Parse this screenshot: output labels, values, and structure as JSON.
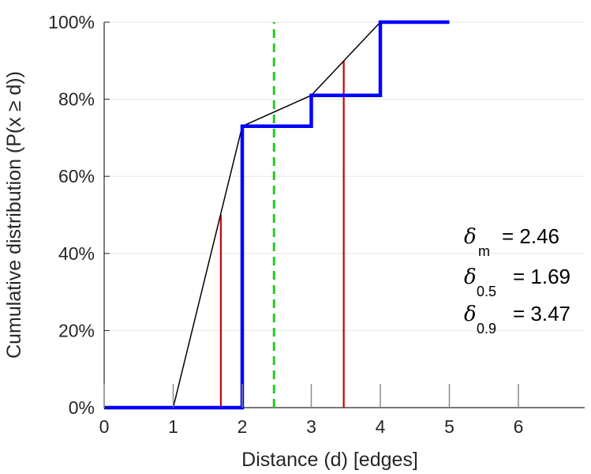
{
  "chart_data": {
    "type": "line",
    "xlabel": "Distance (d) [edges]",
    "ylabel": "Cumulative distribution (P(x ≥ d))",
    "xlim": [
      0,
      7
    ],
    "ylim": [
      0,
      100
    ],
    "x_ticks": [
      "0",
      "1",
      "2",
      "3",
      "4",
      "5",
      "6"
    ],
    "y_ticks": [
      "0%",
      "20%",
      "40%",
      "60%",
      "80%",
      "100%"
    ],
    "grid": true,
    "series": [
      {
        "kind": "step",
        "color": "#0000ff",
        "x": [
          0,
          2,
          2,
          3,
          3,
          4,
          4,
          5
        ],
        "y": [
          0,
          0,
          73,
          73,
          81,
          81,
          100,
          100
        ]
      },
      {
        "kind": "line",
        "color": "#000000",
        "x": [
          1,
          2,
          3,
          4
        ],
        "y": [
          0,
          73,
          81,
          100
        ]
      }
    ],
    "vlines": [
      {
        "x": 1.69,
        "y_to": 50,
        "color": "#cc0000",
        "style": "solid"
      },
      {
        "x": 3.47,
        "y_to": 90,
        "color": "#cc0000",
        "style": "solid"
      },
      {
        "x": 2.46,
        "y_to": 100,
        "color": "#22cc22",
        "style": "dashed"
      }
    ],
    "annotations": [
      {
        "symbol": "δ",
        "subscript": "m",
        "value": "= 2.46"
      },
      {
        "symbol": "δ",
        "subscript": "0.5",
        "value": "= 1.69"
      },
      {
        "symbol": "δ",
        "subscript": "0.9",
        "value": "= 3.47"
      }
    ]
  }
}
